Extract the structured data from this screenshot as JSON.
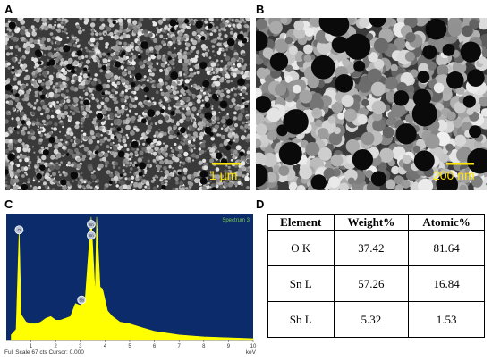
{
  "panels": {
    "a": {
      "letter": "A",
      "scale_label": "1 µm"
    },
    "b": {
      "letter": "B",
      "scale_label": "200 nm"
    },
    "c": {
      "letter": "C"
    },
    "d": {
      "letter": "D"
    }
  },
  "colors": {
    "sem_scalebar": "#ffe600",
    "eds_background": "#0b2b6b",
    "eds_spectrum": "#ffff00",
    "eds_label": "#7ec850"
  },
  "chart_data": {
    "type": "area",
    "title": "Spectrum 3",
    "xlabel": "keV",
    "ylabel": "",
    "xlim": [
      0,
      10
    ],
    "xticks": [
      "1",
      "2",
      "3",
      "4",
      "5",
      "6",
      "7",
      "8",
      "9",
      "10"
    ],
    "footer": "Full Scale 67 cts Cursor: 0.000",
    "peak_marker_labels": [
      "O",
      "Sn",
      "Sn",
      "Sb"
    ],
    "series": [
      {
        "x": [
          0.2,
          0.4,
          0.52,
          0.6,
          0.8,
          1.0,
          1.2,
          1.4,
          1.6,
          1.8,
          2.0,
          2.2,
          2.4,
          2.6,
          2.8,
          3.0,
          3.2,
          3.44,
          3.6,
          3.66,
          3.8,
          3.9,
          4.1,
          4.3,
          4.6,
          5.0,
          5.5,
          6.0,
          7.0,
          8.0,
          9.0,
          10.0
        ],
        "y": [
          3,
          6,
          60,
          14,
          10,
          9,
          9,
          10,
          12,
          13,
          11,
          11,
          12,
          13,
          20,
          19,
          23,
          67,
          25,
          67,
          29,
          28,
          16,
          13,
          10,
          9,
          7,
          5,
          3,
          2,
          1.5,
          1
        ]
      }
    ]
  },
  "table": {
    "headers": [
      "Element",
      "Weight%",
      "Atomic%"
    ],
    "rows": [
      [
        "O K",
        "37.42",
        "81.64"
      ],
      [
        "Sn L",
        "57.26",
        "16.84"
      ],
      [
        "Sb L",
        "5.32",
        "1.53"
      ]
    ]
  }
}
